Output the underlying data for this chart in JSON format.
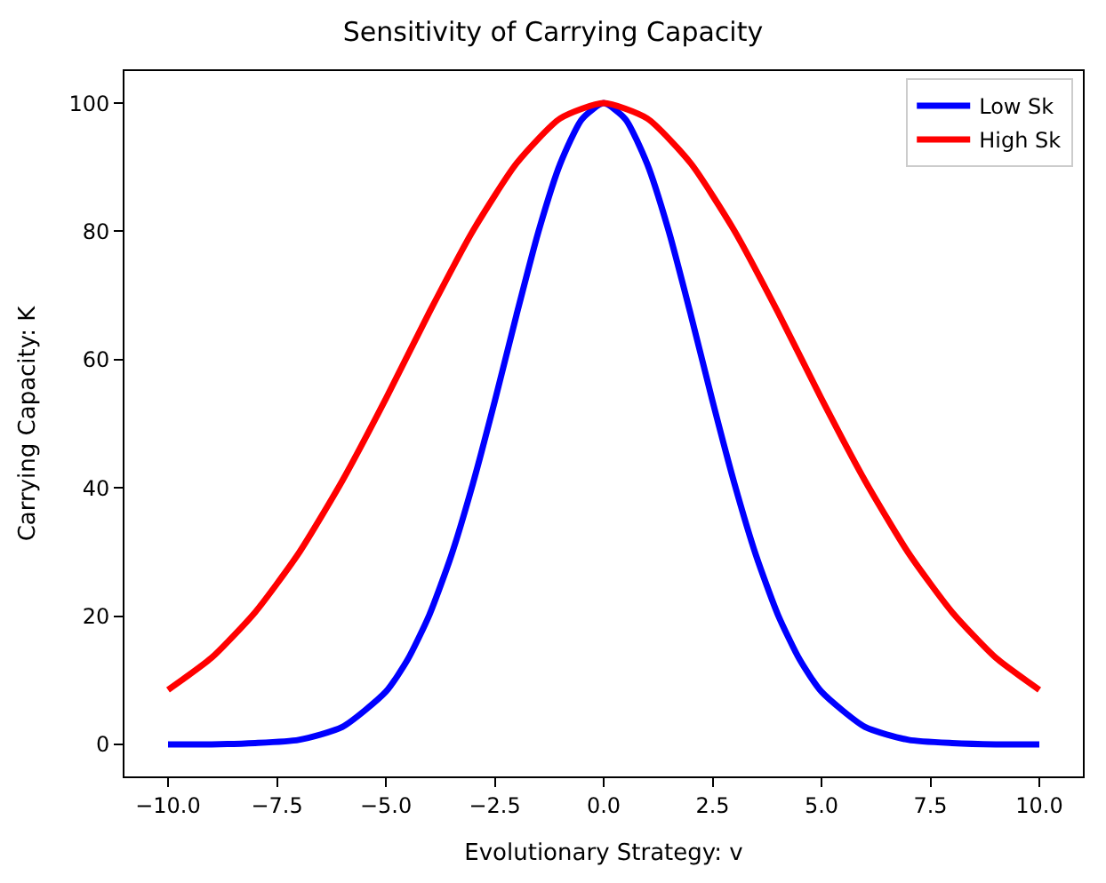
{
  "chart_data": {
    "type": "line",
    "title": "Sensitivity of Carrying Capacity",
    "xlabel": "Evolutionary Strategy: v",
    "ylabel": "Carrying Capacity: K",
    "xlim": [
      -11,
      11
    ],
    "ylim": [
      -5,
      105
    ],
    "xticks": [
      {
        "value": -10,
        "label": "−10.0"
      },
      {
        "value": -7.5,
        "label": "−7.5"
      },
      {
        "value": -5,
        "label": "−5.0"
      },
      {
        "value": -2.5,
        "label": "−2.5"
      },
      {
        "value": 0,
        "label": "0.0"
      },
      {
        "value": 2.5,
        "label": "2.5"
      },
      {
        "value": 5,
        "label": "5.0"
      },
      {
        "value": 7.5,
        "label": "7.5"
      },
      {
        "value": 10,
        "label": "10.0"
      }
    ],
    "yticks": [
      0,
      20,
      40,
      60,
      80,
      100
    ],
    "legend": "top right",
    "marker": "none",
    "line_style": "solid",
    "series": [
      {
        "name": "Low Sk",
        "color": "#0000ff",
        "x": [
          -10,
          -9,
          -8,
          -7,
          -6,
          -5,
          -4.5,
          -4,
          -3.5,
          -3,
          -2.5,
          -2,
          -1.5,
          -1,
          -0.5,
          0,
          0.5,
          1,
          1.5,
          2,
          2.5,
          3,
          3.5,
          4,
          4.5,
          5,
          6,
          7,
          8,
          9,
          10
        ],
        "values": [
          0,
          0,
          0.2,
          0.7,
          2.7,
          8.2,
          13.2,
          20.2,
          29.4,
          40.7,
          53.5,
          67,
          79.9,
          90.5,
          97.5,
          100,
          97.5,
          90.5,
          79.9,
          67,
          53.5,
          40.7,
          29.4,
          20.2,
          13.2,
          8.2,
          2.7,
          0.7,
          0.2,
          0,
          0
        ]
      },
      {
        "name": "High Sk",
        "color": "#ff0000",
        "x": [
          -10,
          -9,
          -8,
          -7,
          -6,
          -5,
          -4,
          -3,
          -2,
          -1,
          0,
          1,
          2,
          3,
          4,
          5,
          6,
          7,
          8,
          9,
          10
        ],
        "values": [
          8.5,
          13.5,
          20.6,
          29.8,
          41.1,
          53.9,
          67.4,
          80.1,
          90.6,
          97.6,
          100,
          97.6,
          90.6,
          80.1,
          67.4,
          53.9,
          41.1,
          29.8,
          20.6,
          13.5,
          8.5
        ]
      }
    ]
  }
}
